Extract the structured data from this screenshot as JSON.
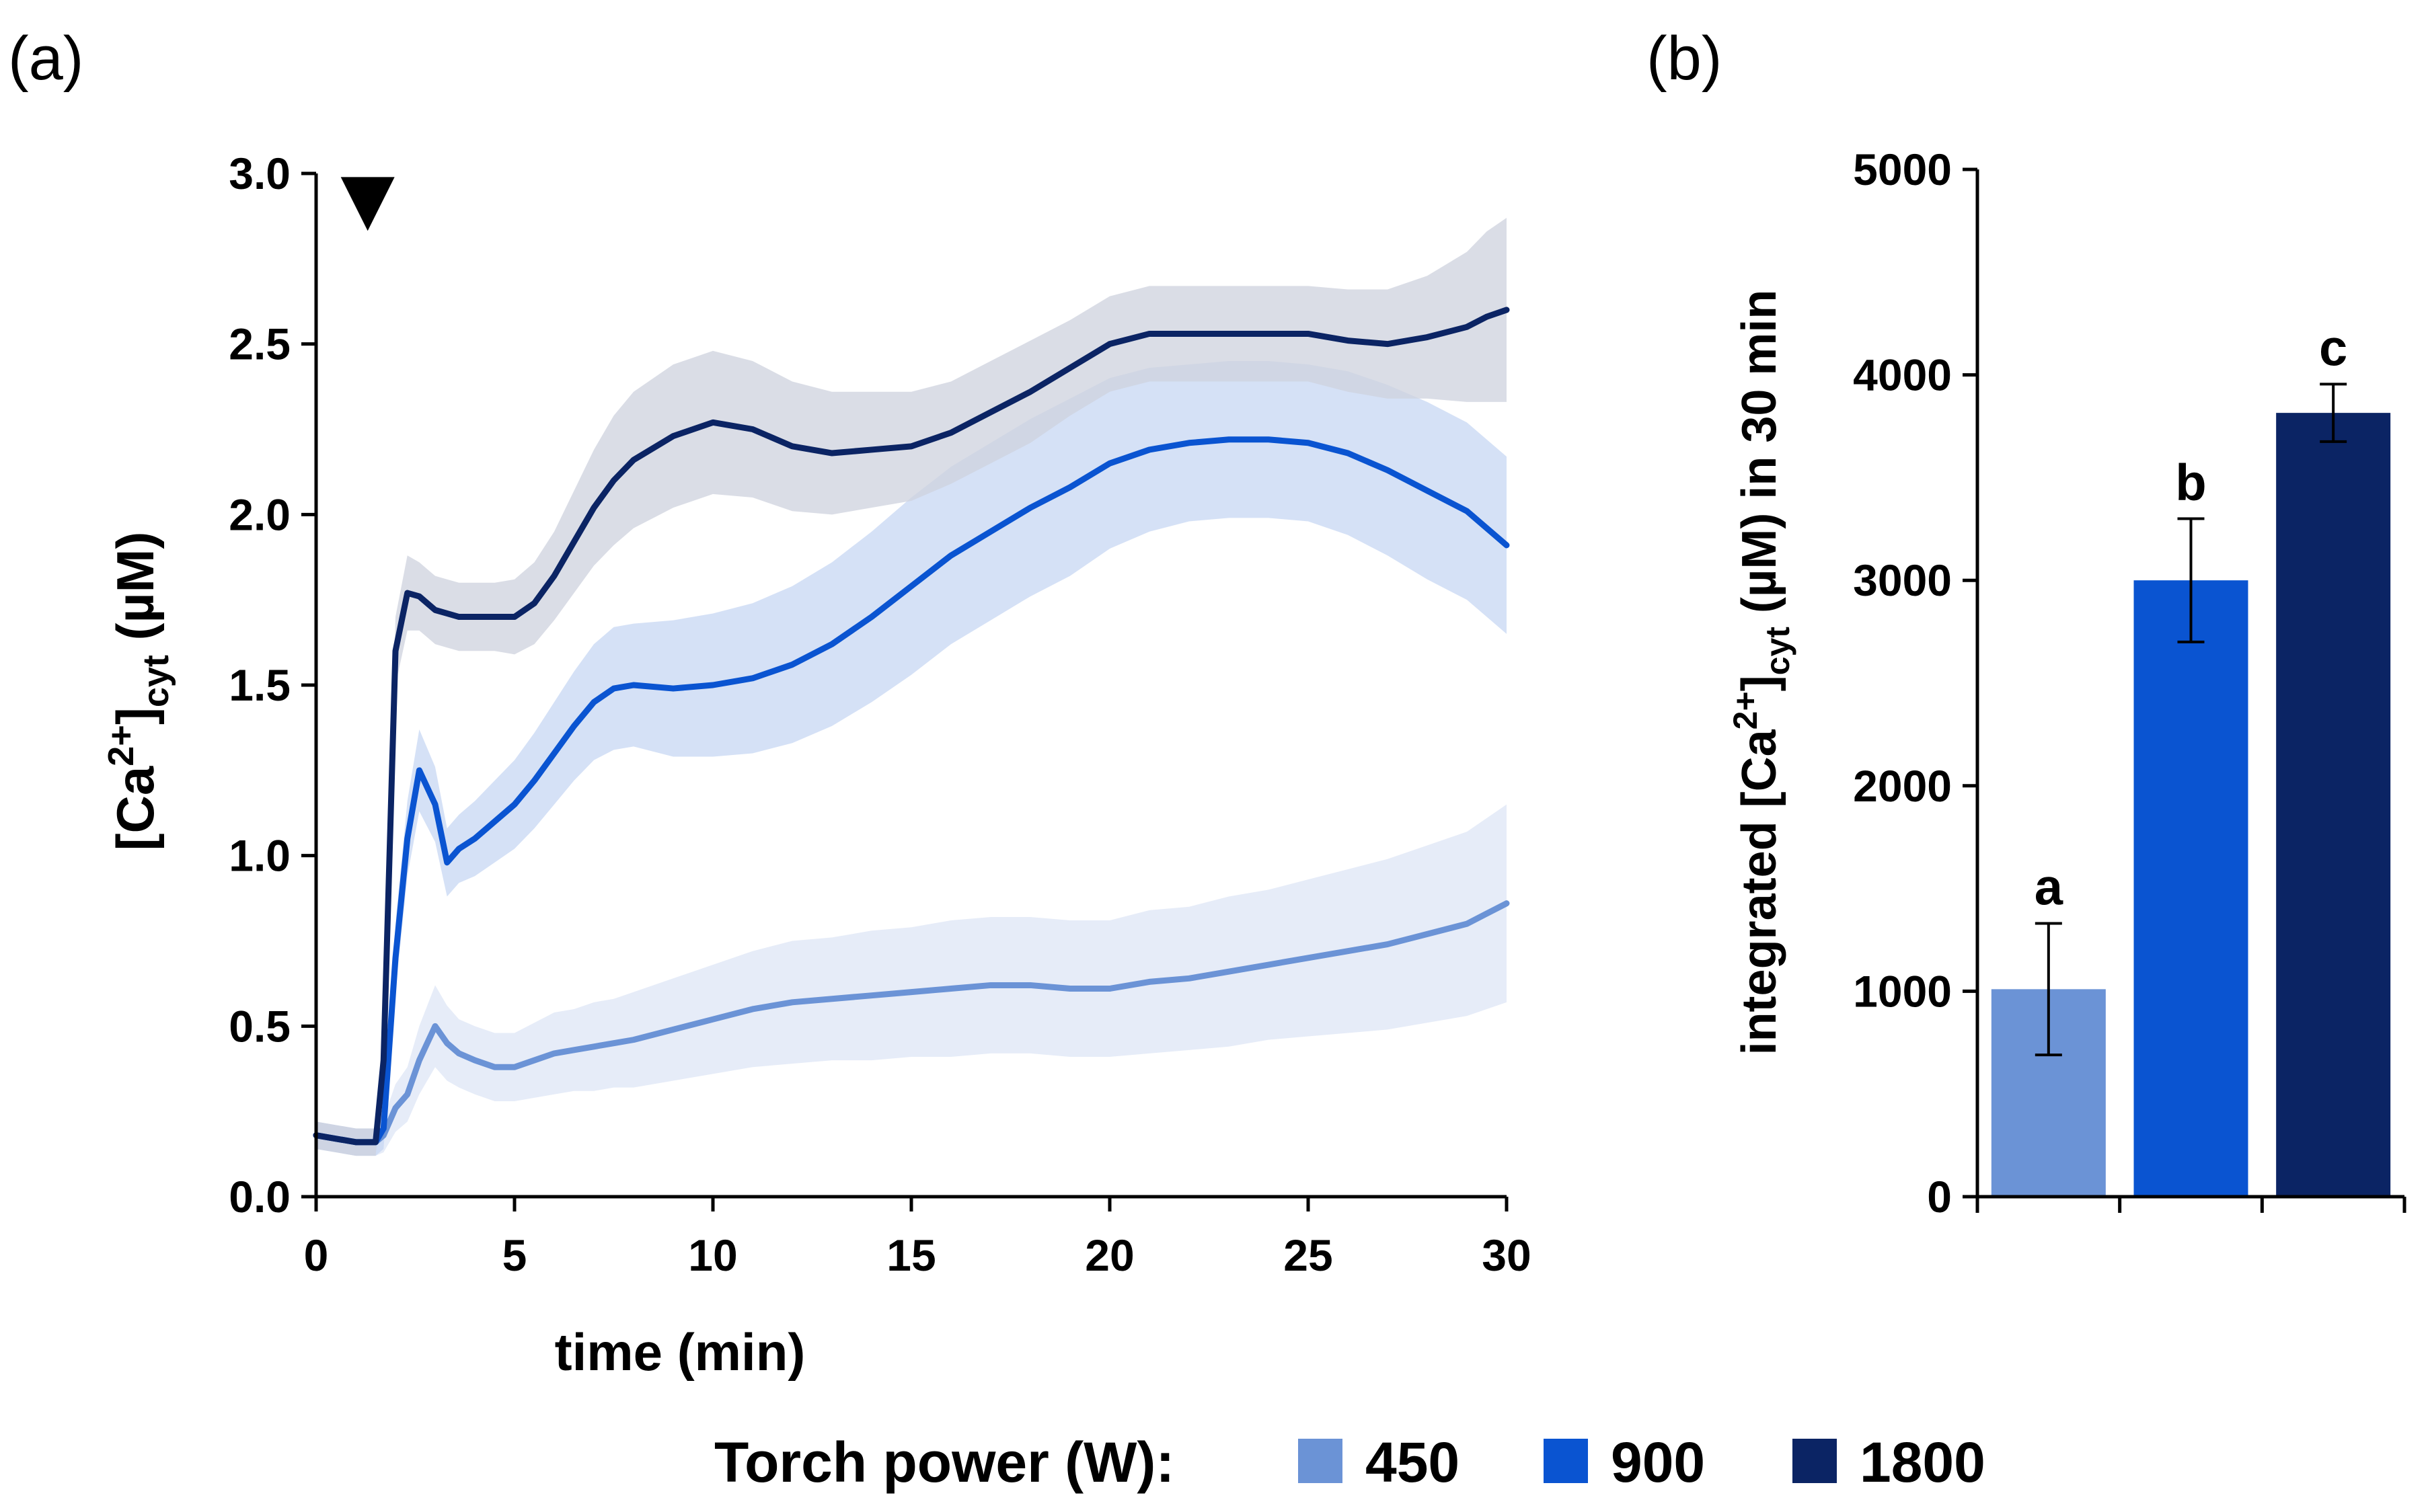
{
  "panel_a": {
    "label": "(a)"
  },
  "panel_b": {
    "label": "(b)"
  },
  "legend": {
    "title": "Torch power (W):",
    "entries": [
      {
        "label": "450",
        "color": "#6b93d6"
      },
      {
        "label": "900",
        "color": "#0a54d1"
      },
      {
        "label": "1800",
        "color": "#0b2464"
      }
    ]
  },
  "chart_data": [
    {
      "type": "line",
      "title": "",
      "xlabel": "time (min)",
      "ylabel_parts": {
        "base": "[Ca",
        "sup": "2+",
        "mid": "]",
        "sub": "cyt",
        "unit": " (µM)"
      },
      "xlim": [
        0,
        30
      ],
      "ylim": [
        0,
        3.0
      ],
      "xticks": [
        0,
        5,
        10,
        15,
        20,
        25,
        30
      ],
      "xtick_labels": [
        "0",
        "5",
        "10",
        "15",
        "20",
        "25",
        "30"
      ],
      "yticks": [
        0,
        0.5,
        1.0,
        1.5,
        2.0,
        2.5,
        3.0
      ],
      "ytick_labels": [
        "0.0",
        "0.5",
        "1.0",
        "1.5",
        "2.0",
        "2.5",
        "3.0"
      ],
      "annotation": {
        "type": "triangle-down",
        "x": 1.3,
        "y": 2.95,
        "description": "treatment start"
      },
      "x": [
        0,
        0.5,
        1,
        1.5,
        1.7,
        2.0,
        2.3,
        2.6,
        3.0,
        3.3,
        3.6,
        4.0,
        4.5,
        5.0,
        5.5,
        6,
        6.5,
        7,
        7.5,
        8,
        9,
        10,
        11,
        12,
        13,
        14,
        15,
        16,
        17,
        18,
        19,
        20,
        21,
        22,
        23,
        24,
        25,
        26,
        27,
        28,
        29,
        29.5,
        30
      ],
      "series": [
        {
          "name": "450",
          "color": "#6b93d6",
          "band_color": "#dde6f6",
          "values": [
            0.18,
            0.17,
            0.16,
            0.16,
            0.18,
            0.26,
            0.3,
            0.4,
            0.5,
            0.45,
            0.42,
            0.4,
            0.38,
            0.38,
            0.4,
            0.42,
            0.43,
            0.44,
            0.45,
            0.46,
            0.49,
            0.52,
            0.55,
            0.57,
            0.58,
            0.59,
            0.6,
            0.61,
            0.62,
            0.62,
            0.61,
            0.61,
            0.63,
            0.64,
            0.66,
            0.68,
            0.7,
            0.72,
            0.74,
            0.77,
            0.8,
            0.83,
            0.86
          ],
          "spread": [
            0.04,
            0.04,
            0.04,
            0.04,
            0.05,
            0.07,
            0.08,
            0.1,
            0.12,
            0.11,
            0.1,
            0.1,
            0.1,
            0.1,
            0.11,
            0.12,
            0.12,
            0.13,
            0.13,
            0.14,
            0.15,
            0.16,
            0.17,
            0.18,
            0.18,
            0.19,
            0.19,
            0.2,
            0.2,
            0.2,
            0.2,
            0.2,
            0.21,
            0.21,
            0.22,
            0.22,
            0.23,
            0.24,
            0.25,
            0.26,
            0.27,
            0.28,
            0.29
          ]
        },
        {
          "name": "900",
          "color": "#0a54d1",
          "band_color": "#c7d7f3",
          "values": [
            0.18,
            0.17,
            0.16,
            0.16,
            0.2,
            0.7,
            1.05,
            1.25,
            1.15,
            0.98,
            1.02,
            1.05,
            1.1,
            1.15,
            1.22,
            1.3,
            1.38,
            1.45,
            1.49,
            1.5,
            1.49,
            1.5,
            1.52,
            1.56,
            1.62,
            1.7,
            1.79,
            1.88,
            1.95,
            2.02,
            2.08,
            2.15,
            2.19,
            2.21,
            2.22,
            2.22,
            2.21,
            2.18,
            2.13,
            2.07,
            2.01,
            1.96,
            1.91
          ],
          "spread": [
            0.04,
            0.04,
            0.04,
            0.04,
            0.06,
            0.1,
            0.11,
            0.12,
            0.11,
            0.1,
            0.1,
            0.11,
            0.12,
            0.13,
            0.14,
            0.15,
            0.16,
            0.17,
            0.18,
            0.18,
            0.2,
            0.21,
            0.22,
            0.23,
            0.24,
            0.25,
            0.26,
            0.26,
            0.26,
            0.26,
            0.26,
            0.25,
            0.24,
            0.23,
            0.23,
            0.23,
            0.23,
            0.24,
            0.25,
            0.26,
            0.26,
            0.26,
            0.26
          ]
        },
        {
          "name": "1800",
          "color": "#0b2464",
          "band_color": "#cdd2de",
          "values": [
            0.18,
            0.17,
            0.16,
            0.16,
            0.4,
            1.6,
            1.77,
            1.76,
            1.72,
            1.71,
            1.7,
            1.7,
            1.7,
            1.7,
            1.74,
            1.82,
            1.92,
            2.02,
            2.1,
            2.16,
            2.23,
            2.27,
            2.25,
            2.2,
            2.18,
            2.19,
            2.2,
            2.24,
            2.3,
            2.36,
            2.43,
            2.5,
            2.53,
            2.53,
            2.53,
            2.53,
            2.53,
            2.51,
            2.5,
            2.52,
            2.55,
            2.58,
            2.6
          ],
          "spread": [
            0.04,
            0.04,
            0.04,
            0.04,
            0.06,
            0.1,
            0.11,
            0.1,
            0.1,
            0.1,
            0.1,
            0.1,
            0.1,
            0.11,
            0.12,
            0.13,
            0.15,
            0.17,
            0.19,
            0.2,
            0.21,
            0.21,
            0.2,
            0.19,
            0.18,
            0.17,
            0.16,
            0.15,
            0.15,
            0.15,
            0.14,
            0.14,
            0.14,
            0.14,
            0.14,
            0.14,
            0.14,
            0.15,
            0.16,
            0.18,
            0.22,
            0.25,
            0.27
          ]
        }
      ]
    },
    {
      "type": "bar",
      "title": "",
      "xlabel": "",
      "ylabel_parts": {
        "base": "integrated [Ca",
        "sup": "2+",
        "mid": "]",
        "sub": "cyt",
        "unit": " (µM) in 30 min"
      },
      "ylim": [
        0,
        5000
      ],
      "yticks": [
        0,
        1000,
        2000,
        3000,
        4000,
        5000
      ],
      "ytick_labels": [
        "0",
        "1000",
        "2000",
        "3000",
        "4000",
        "5000"
      ],
      "categories": [
        "450",
        "900",
        "1800"
      ],
      "values": [
        1010,
        3000,
        3815
      ],
      "errors": [
        320,
        300,
        140
      ],
      "colors": [
        "#6b93d6",
        "#0a54d1",
        "#0b2464"
      ],
      "significance": [
        "a",
        "b",
        "c"
      ]
    }
  ]
}
